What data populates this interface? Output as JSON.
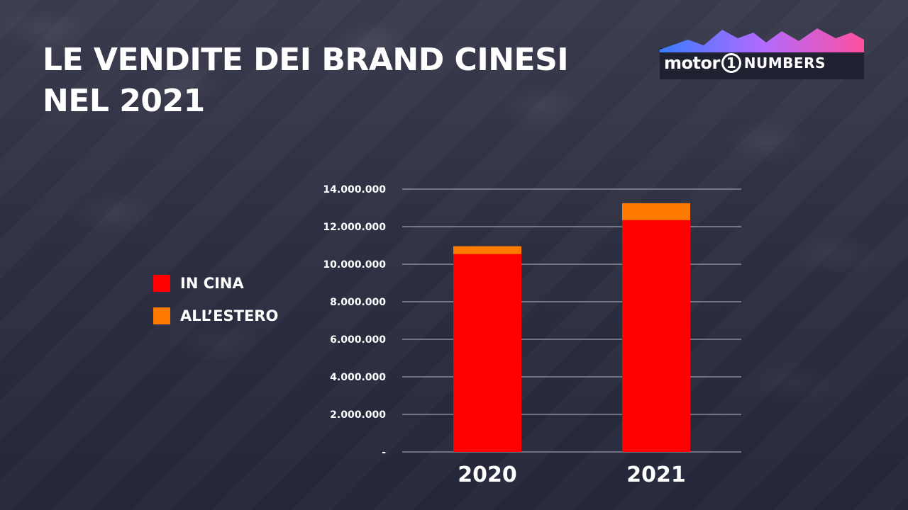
{
  "title_lines": [
    "LE VENDITE DEI BRAND CINESI",
    "NEL 2021"
  ],
  "logo": {
    "motor": "motor",
    "one": "1",
    "numbers": "NUMBERS"
  },
  "colors": {
    "in_cina": "#ff0000",
    "estero": "#ff7a00",
    "grid": "#b9b9c2"
  },
  "chart_data": {
    "type": "bar",
    "stacked": true,
    "categories": [
      "2020",
      "2021"
    ],
    "series": [
      {
        "name": "IN CINA",
        "values": [
          10540000,
          12350000
        ]
      },
      {
        "name": "ALL’ESTERO",
        "values": [
          420000,
          900000
        ]
      }
    ],
    "ylim": [
      0,
      14000000
    ],
    "yticks": [
      "14.000.000",
      "12.000.000",
      "10.000.000",
      "8.000.000",
      "6.000.000",
      "4.000.000",
      "2.000.000",
      "-"
    ],
    "grid": true,
    "legend_position": "left"
  }
}
